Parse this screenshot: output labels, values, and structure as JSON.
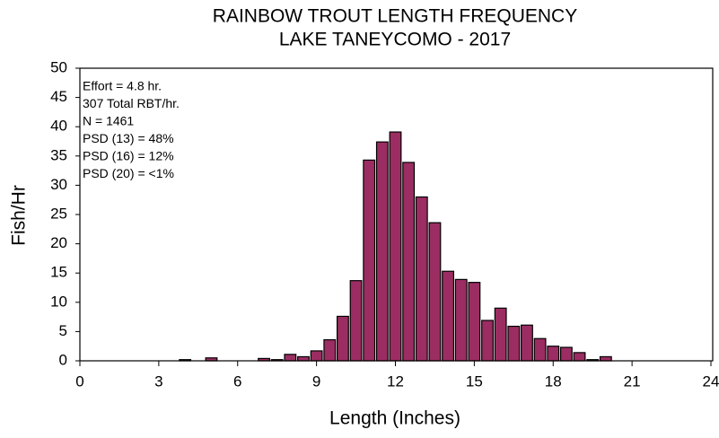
{
  "chart_data": {
    "type": "bar",
    "title": "RAINBOW TROUT LENGTH FREQUENCY",
    "subtitle": "LAKE TANEYCOMO - 2017",
    "x_label": "Length (Inches)",
    "y_label": "Fish/Hr",
    "annotations": [
      "Effort = 4.8 hr.",
      "307 Total RBT/hr.",
      "N = 1461",
      "PSD (13) = 48%",
      "PSD (16) = 12%",
      "PSD (20) = <1%"
    ],
    "x": [
      4,
      5,
      7,
      7.5,
      8,
      8.5,
      9,
      9.5,
      10,
      10.5,
      11,
      11.5,
      12,
      12.5,
      13,
      13.5,
      14,
      14.5,
      15,
      15.5,
      16,
      16.5,
      17,
      17.5,
      18,
      18.5,
      19,
      19.5,
      20
    ],
    "values": [
      0.2,
      0.5,
      0.4,
      0.2,
      1.1,
      0.7,
      1.7,
      3.6,
      7.6,
      13.7,
      34.3,
      37.4,
      39.1,
      33.9,
      28,
      23.6,
      15.3,
      13.9,
      13.4,
      6.9,
      9,
      5.9,
      6.1,
      3.8,
      2.5,
      2.3,
      1.4,
      0.2,
      0.7
    ],
    "color": "#9b2d62",
    "xlim": [
      0,
      24
    ],
    "xticks": [
      0,
      3,
      6,
      9,
      12,
      15,
      18,
      21,
      24
    ],
    "ylim": [
      0,
      50
    ],
    "yticks": [
      0,
      5,
      10,
      15,
      20,
      25,
      30,
      35,
      40,
      45,
      50
    ]
  }
}
